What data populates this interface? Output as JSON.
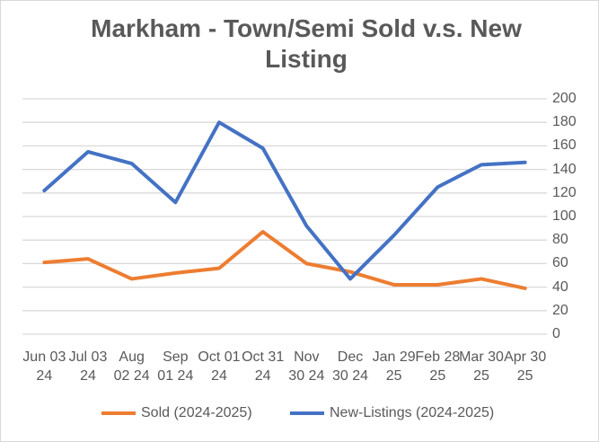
{
  "chart_data": {
    "type": "line",
    "title": "Markham - Town/Semi Sold v.s. New Listing",
    "categories": [
      "Jun 03 24",
      "Jul 03 24",
      "Aug 02 24",
      "Sep 01 24",
      "Oct 01 24",
      "Oct 31 24",
      "Nov 30 24",
      "Dec 30 24",
      "Jan 29 25",
      "Feb 28 25",
      "Mar 30 25",
      "Apr 30 25"
    ],
    "series": [
      {
        "name": "Sold (2024-2025)",
        "color": "#ed7d31",
        "values": [
          61,
          64,
          47,
          52,
          56,
          87,
          60,
          53,
          42,
          42,
          47,
          39
        ]
      },
      {
        "name": "New-Listings (2024-2025)",
        "color": "#4472c4",
        "values": [
          122,
          155,
          145,
          112,
          180,
          158,
          92,
          47,
          84,
          125,
          144,
          146
        ]
      }
    ],
    "yticks": [
      0,
      20,
      40,
      60,
      80,
      100,
      120,
      140,
      160,
      180,
      200
    ],
    "ylim": [
      0,
      200
    ],
    "yaxis_position": "right",
    "grid": true,
    "legend_position": "bottom",
    "xlabel": "",
    "ylabel": ""
  }
}
